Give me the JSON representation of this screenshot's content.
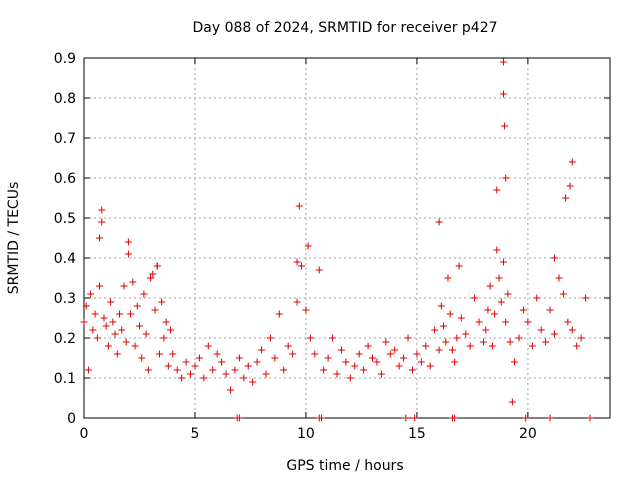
{
  "chart_data": {
    "type": "scatter",
    "title": "Day 088 of 2024, SRMTID for receiver p427",
    "xlabel": "GPS time / hours",
    "ylabel": "SRMTID / TECUs",
    "xlim": [
      0,
      23.7
    ],
    "ylim": [
      0,
      0.9
    ],
    "xticks": [
      0,
      5,
      10,
      15,
      20
    ],
    "yticks": [
      0,
      0.1,
      0.2,
      0.3,
      0.4,
      0.5,
      0.6,
      0.7,
      0.8,
      0.9
    ],
    "grid": true,
    "legend": "none",
    "marker": "+",
    "color": "#e00000",
    "series": [
      {
        "name": "SRMTID",
        "x": [
          0.0,
          0.1,
          0.2,
          0.3,
          0.4,
          0.5,
          0.6,
          0.7,
          0.8,
          0.9,
          1.0,
          1.1,
          1.2,
          1.3,
          1.4,
          1.5,
          1.6,
          1.7,
          1.8,
          1.9,
          2.0,
          2.1,
          2.2,
          2.3,
          2.4,
          2.5,
          2.6,
          2.7,
          2.8,
          2.9,
          3.0,
          3.1,
          3.2,
          3.3,
          3.4,
          3.5,
          3.6,
          3.7,
          3.8,
          3.9,
          4.0,
          4.2,
          4.4,
          4.6,
          4.8,
          5.0,
          5.2,
          5.4,
          5.6,
          5.8,
          6.0,
          6.2,
          6.4,
          6.6,
          6.8,
          7.0,
          7.2,
          7.4,
          7.6,
          7.8,
          8.0,
          8.2,
          8.4,
          8.6,
          8.8,
          9.0,
          9.2,
          9.4,
          9.6,
          9.8,
          10.0,
          10.2,
          10.4,
          10.6,
          10.8,
          11.0,
          11.2,
          11.4,
          11.6,
          11.8,
          12.0,
          12.2,
          12.4,
          12.6,
          12.8,
          13.0,
          13.2,
          13.4,
          13.6,
          13.8,
          14.0,
          14.2,
          14.4,
          14.6,
          14.8,
          15.0,
          15.2,
          15.4,
          15.6,
          15.8,
          16.0,
          16.1,
          16.2,
          16.3,
          16.4,
          16.5,
          16.6,
          16.7,
          16.8,
          16.9,
          17.0,
          17.2,
          17.4,
          17.6,
          17.8,
          18.0,
          18.1,
          18.2,
          18.3,
          18.4,
          18.5,
          18.6,
          18.7,
          18.8,
          18.9,
          19.0,
          19.1,
          19.2,
          19.3,
          19.4,
          19.6,
          19.8,
          20.0,
          20.2,
          20.4,
          20.6,
          20.8,
          21.0,
          21.2,
          21.4,
          21.6,
          21.8,
          22.0,
          22.2,
          22.4,
          22.6,
          0.8,
          0.7,
          2.0,
          3.3,
          9.7,
          9.6,
          10.1,
          16.0,
          18.6,
          18.9,
          18.9,
          19.0,
          18.95,
          22.0,
          21.9,
          21.7,
          21.2,
          6.9,
          7.0,
          10.6,
          10.7,
          14.5,
          14.9,
          16.6,
          16.7,
          19.9,
          21.0,
          22.8
        ],
        "y": [
          0.24,
          0.28,
          0.12,
          0.31,
          0.22,
          0.26,
          0.2,
          0.33,
          0.52,
          0.25,
          0.23,
          0.18,
          0.29,
          0.24,
          0.21,
          0.16,
          0.26,
          0.22,
          0.33,
          0.19,
          0.44,
          0.26,
          0.34,
          0.18,
          0.28,
          0.23,
          0.15,
          0.31,
          0.21,
          0.12,
          0.35,
          0.36,
          0.27,
          0.38,
          0.16,
          0.29,
          0.2,
          0.24,
          0.13,
          0.22,
          0.16,
          0.12,
          0.1,
          0.14,
          0.11,
          0.13,
          0.15,
          0.1,
          0.18,
          0.12,
          0.16,
          0.14,
          0.11,
          0.07,
          0.12,
          0.15,
          0.1,
          0.13,
          0.09,
          0.14,
          0.17,
          0.11,
          0.2,
          0.15,
          0.26,
          0.12,
          0.18,
          0.16,
          0.29,
          0.38,
          0.27,
          0.2,
          0.16,
          0.37,
          0.12,
          0.15,
          0.2,
          0.11,
          0.17,
          0.14,
          0.1,
          0.13,
          0.16,
          0.12,
          0.18,
          0.15,
          0.14,
          0.11,
          0.19,
          0.16,
          0.17,
          0.13,
          0.15,
          0.2,
          0.12,
          0.16,
          0.14,
          0.18,
          0.13,
          0.22,
          0.17,
          0.28,
          0.23,
          0.19,
          0.35,
          0.26,
          0.17,
          0.14,
          0.2,
          0.38,
          0.25,
          0.21,
          0.18,
          0.3,
          0.24,
          0.19,
          0.22,
          0.27,
          0.33,
          0.18,
          0.26,
          0.42,
          0.35,
          0.29,
          0.39,
          0.24,
          0.31,
          0.19,
          0.04,
          0.14,
          0.2,
          0.27,
          0.24,
          0.18,
          0.3,
          0.22,
          0.19,
          0.27,
          0.21,
          0.35,
          0.31,
          0.24,
          0.22,
          0.18,
          0.2,
          0.3,
          0.49,
          0.45,
          0.41,
          0.38,
          0.53,
          0.39,
          0.43,
          0.49,
          0.57,
          0.89,
          0.81,
          0.6,
          0.73,
          0.64,
          0.58,
          0.55,
          0.4,
          0.0,
          0.0,
          0.0,
          0.0,
          0.0,
          0.0,
          0.0,
          0.0,
          0.0,
          0.0,
          0.0
        ]
      }
    ]
  }
}
